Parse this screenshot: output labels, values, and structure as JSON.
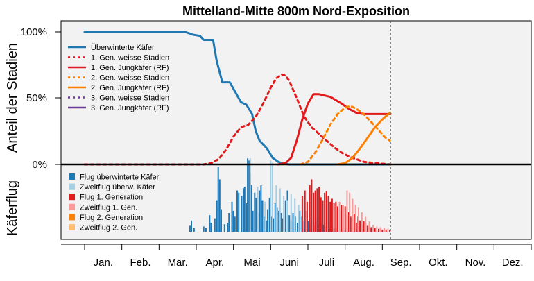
{
  "chart_data": [
    {
      "type": "line",
      "title": "Mittelland-Mitte 800m Nord-Exposition",
      "ylabel": "Anteil der Stadien",
      "y_ticks": [
        "100%",
        "50%",
        "0%"
      ],
      "ylim": [
        0,
        1.05
      ],
      "x_unit": "month (1.0 = 1 Jan, 13.0 = 31 Dec)",
      "xlim": [
        1.0,
        13.0
      ],
      "grid": false,
      "legend_position": "top-left",
      "current_date_marker": 9.22,
      "series": [
        {
          "name": "Überwinterte Käfer",
          "color": "#1f78b4",
          "style": "solid",
          "points": [
            [
              1.0,
              1.0
            ],
            [
              3.7,
              1.0
            ],
            [
              3.9,
              0.98
            ],
            [
              4.1,
              0.97
            ],
            [
              4.2,
              0.94
            ],
            [
              4.45,
              0.94
            ],
            [
              4.55,
              0.78
            ],
            [
              4.7,
              0.62
            ],
            [
              4.9,
              0.62
            ],
            [
              5.0,
              0.57
            ],
            [
              5.2,
              0.47
            ],
            [
              5.35,
              0.45
            ],
            [
              5.5,
              0.38
            ],
            [
              5.6,
              0.25
            ],
            [
              5.7,
              0.18
            ],
            [
              5.9,
              0.12
            ],
            [
              6.05,
              0.05
            ],
            [
              6.2,
              0.02
            ],
            [
              6.35,
              0.005
            ],
            [
              6.5,
              0.0
            ],
            [
              9.22,
              0.0
            ]
          ]
        },
        {
          "name": "1. Gen. weisse Stadien",
          "color": "#e31a1c",
          "style": "dotted",
          "points": [
            [
              1.0,
              0.0
            ],
            [
              4.2,
              0.0
            ],
            [
              4.4,
              0.01
            ],
            [
              4.6,
              0.04
            ],
            [
              4.8,
              0.11
            ],
            [
              5.0,
              0.21
            ],
            [
              5.2,
              0.28
            ],
            [
              5.4,
              0.3
            ],
            [
              5.6,
              0.36
            ],
            [
              5.8,
              0.46
            ],
            [
              6.0,
              0.58
            ],
            [
              6.15,
              0.65
            ],
            [
              6.3,
              0.68
            ],
            [
              6.4,
              0.67
            ],
            [
              6.5,
              0.63
            ],
            [
              6.7,
              0.5
            ],
            [
              6.9,
              0.36
            ],
            [
              7.1,
              0.28
            ],
            [
              7.3,
              0.23
            ],
            [
              7.5,
              0.18
            ],
            [
              7.7,
              0.13
            ],
            [
              7.9,
              0.09
            ],
            [
              8.1,
              0.06
            ],
            [
              8.3,
              0.04
            ],
            [
              8.5,
              0.02
            ],
            [
              8.8,
              0.01
            ],
            [
              9.22,
              0.0
            ]
          ]
        },
        {
          "name": "1. Gen. Jungkäfer (RF)",
          "color": "#e31a1c",
          "style": "solid",
          "points": [
            [
              6.2,
              0.0
            ],
            [
              6.4,
              0.01
            ],
            [
              6.55,
              0.05
            ],
            [
              6.7,
              0.18
            ],
            [
              6.85,
              0.34
            ],
            [
              7.0,
              0.46
            ],
            [
              7.15,
              0.53
            ],
            [
              7.3,
              0.53
            ],
            [
              7.6,
              0.51
            ],
            [
              7.9,
              0.46
            ],
            [
              8.1,
              0.42
            ],
            [
              8.3,
              0.39
            ],
            [
              8.5,
              0.38
            ],
            [
              9.22,
              0.38
            ]
          ]
        },
        {
          "name": "2. Gen. weisse Stadien",
          "color": "#ff7f00",
          "style": "dotted",
          "points": [
            [
              6.8,
              0.0
            ],
            [
              7.0,
              0.02
            ],
            [
              7.2,
              0.09
            ],
            [
              7.4,
              0.19
            ],
            [
              7.6,
              0.3
            ],
            [
              7.8,
              0.38
            ],
            [
              8.0,
              0.43
            ],
            [
              8.15,
              0.44
            ],
            [
              8.3,
              0.42
            ],
            [
              8.5,
              0.38
            ],
            [
              8.7,
              0.32
            ],
            [
              8.9,
              0.26
            ],
            [
              9.05,
              0.21
            ],
            [
              9.2,
              0.18
            ]
          ]
        },
        {
          "name": "2. Gen. Jungkäfer (RF)",
          "color": "#ff7f00",
          "style": "solid",
          "points": [
            [
              7.8,
              0.0
            ],
            [
              8.0,
              0.01
            ],
            [
              8.2,
              0.05
            ],
            [
              8.4,
              0.12
            ],
            [
              8.6,
              0.2
            ],
            [
              8.8,
              0.28
            ],
            [
              9.0,
              0.34
            ],
            [
              9.2,
              0.39
            ]
          ]
        },
        {
          "name": "3. Gen. weisse Stadien",
          "color": "#6a3d9a",
          "style": "dotted",
          "points": []
        },
        {
          "name": "3. Gen. Jungkäfer (RF)",
          "color": "#6a3d9a",
          "style": "solid",
          "points": []
        }
      ]
    },
    {
      "type": "bar",
      "ylabel": "Käferflug",
      "x_unit": "month (1.0 = 1 Jan)",
      "legend_position": "top-left",
      "x_tick_labels": [
        "Jan.",
        "Feb.",
        "Mär.",
        "Apr.",
        "Mai",
        "Juni",
        "Juli",
        "Aug.",
        "Sep.",
        "Okt.",
        "Nov.",
        "Dez."
      ],
      "series": [
        {
          "name": "Flug überwinterte Käfer",
          "color": "#1f78b4",
          "values": [
            [
              3.83,
              0.08
            ],
            [
              3.87,
              0.15
            ],
            [
              3.94,
              0.05
            ],
            [
              4.2,
              0.07
            ],
            [
              4.26,
              0.05
            ],
            [
              4.36,
              0.22
            ],
            [
              4.4,
              0.12
            ],
            [
              4.5,
              0.18
            ],
            [
              4.55,
              0.42
            ],
            [
              4.59,
              0.87
            ],
            [
              4.63,
              0.7
            ],
            [
              4.67,
              0.3
            ],
            [
              4.76,
              0.1
            ],
            [
              4.84,
              0.12
            ],
            [
              4.88,
              0.25
            ],
            [
              4.96,
              0.4
            ],
            [
              5.0,
              0.28
            ],
            [
              5.04,
              0.2
            ],
            [
              5.1,
              0.55
            ],
            [
              5.14,
              0.52
            ],
            [
              5.22,
              0.48
            ],
            [
              5.27,
              0.58
            ],
            [
              5.3,
              0.6
            ],
            [
              5.35,
              0.38
            ],
            [
              5.38,
              0.98
            ],
            [
              5.42,
              0.95
            ],
            [
              5.45,
              0.78
            ],
            [
              5.48,
              0.62
            ],
            [
              5.52,
              0.28
            ],
            [
              5.57,
              0.52
            ],
            [
              5.61,
              0.45
            ],
            [
              5.65,
              0.25
            ],
            [
              5.7,
              0.55
            ],
            [
              5.74,
              0.62
            ],
            [
              5.78,
              0.42
            ],
            [
              5.83,
              0.2
            ],
            [
              5.88,
              0.15
            ],
            [
              5.92,
              0.3
            ],
            [
              5.97,
              0.45
            ],
            [
              6.02,
              0.2
            ],
            [
              6.07,
              0.18
            ],
            [
              6.12,
              0.38
            ],
            [
              6.17,
              0.32
            ],
            [
              6.22,
              0.28
            ],
            [
              6.28,
              0.25
            ],
            [
              6.33,
              0.18
            ],
            [
              6.4,
              0.42
            ],
            [
              6.45,
              0.55
            ],
            [
              6.5,
              0.22
            ],
            [
              6.55,
              0.15
            ],
            [
              6.6,
              0.25
            ],
            [
              6.66,
              0.2
            ],
            [
              6.72,
              0.12
            ],
            [
              6.78,
              0.28
            ],
            [
              6.84,
              0.2
            ],
            [
              6.9,
              0.15
            ],
            [
              6.95,
              0.22
            ],
            [
              7.0,
              0.14
            ],
            [
              7.05,
              0.1
            ],
            [
              7.1,
              0.16
            ],
            [
              7.15,
              0.12
            ],
            [
              7.2,
              0.08
            ],
            [
              7.25,
              0.14
            ],
            [
              7.3,
              0.1
            ],
            [
              7.35,
              0.12
            ],
            [
              7.42,
              0.09
            ],
            [
              7.5,
              0.07
            ],
            [
              7.6,
              0.06
            ],
            [
              7.7,
              0.05
            ],
            [
              7.8,
              0.04
            ],
            [
              7.9,
              0.04
            ],
            [
              8.0,
              0.03
            ],
            [
              8.1,
              0.02
            ],
            [
              8.2,
              0.02
            ],
            [
              8.3,
              0.02
            ]
          ]
        },
        {
          "name": "Zweitflug überw. Käfer",
          "color": "#a6cee3",
          "values": [
            [
              5.45,
              0.98
            ],
            [
              5.65,
              0.6
            ],
            [
              5.85,
              0.4
            ],
            [
              6.0,
              0.95
            ],
            [
              6.05,
              0.92
            ],
            [
              6.15,
              0.62
            ],
            [
              6.25,
              0.58
            ],
            [
              6.35,
              0.48
            ],
            [
              6.45,
              0.42
            ],
            [
              6.55,
              0.5
            ],
            [
              6.65,
              0.44
            ],
            [
              6.75,
              0.36
            ],
            [
              6.85,
              0.36
            ],
            [
              6.95,
              0.28
            ],
            [
              7.05,
              0.24
            ],
            [
              7.15,
              0.2
            ],
            [
              7.25,
              0.18
            ],
            [
              7.35,
              0.14
            ],
            [
              7.45,
              0.12
            ],
            [
              7.55,
              0.09
            ],
            [
              7.65,
              0.07
            ],
            [
              7.75,
              0.06
            ],
            [
              7.9,
              0.05
            ],
            [
              8.05,
              0.04
            ],
            [
              8.2,
              0.03
            ]
          ]
        },
        {
          "name": "Flug 1. Generation",
          "color": "#e31a1c",
          "values": [
            [
              6.85,
              0.48
            ],
            [
              6.92,
              0.55
            ],
            [
              6.98,
              0.4
            ],
            [
              7.05,
              0.62
            ],
            [
              7.1,
              0.7
            ],
            [
              7.15,
              0.52
            ],
            [
              7.2,
              0.55
            ],
            [
              7.25,
              0.58
            ],
            [
              7.3,
              0.6
            ],
            [
              7.35,
              0.46
            ],
            [
              7.4,
              0.42
            ],
            [
              7.45,
              0.52
            ],
            [
              7.5,
              0.54
            ],
            [
              7.55,
              0.48
            ],
            [
              7.6,
              0.4
            ],
            [
              7.65,
              0.44
            ],
            [
              7.7,
              0.38
            ],
            [
              7.75,
              0.4
            ],
            [
              7.8,
              0.34
            ],
            [
              7.85,
              0.3
            ],
            [
              7.9,
              0.36
            ],
            [
              7.95,
              0.28
            ],
            [
              8.0,
              0.34
            ],
            [
              8.05,
              0.22
            ],
            [
              8.1,
              0.26
            ],
            [
              8.15,
              0.2
            ],
            [
              8.2,
              0.18
            ],
            [
              8.25,
              0.24
            ],
            [
              8.3,
              0.12
            ],
            [
              8.35,
              0.2
            ],
            [
              8.4,
              0.15
            ],
            [
              8.45,
              0.1
            ],
            [
              8.5,
              0.14
            ],
            [
              8.55,
              0.12
            ],
            [
              8.6,
              0.08
            ],
            [
              8.65,
              0.1
            ],
            [
              8.7,
              0.06
            ],
            [
              8.8,
              0.05
            ],
            [
              8.9,
              0.04
            ],
            [
              9.0,
              0.03
            ],
            [
              9.1,
              0.03
            ],
            [
              9.2,
              0.02
            ]
          ]
        },
        {
          "name": "Zweitflug 1. Gen.",
          "color": "#fb9a99",
          "values": [
            [
              7.85,
              0.4
            ],
            [
              7.95,
              0.36
            ],
            [
              8.05,
              0.55
            ],
            [
              8.12,
              0.52
            ],
            [
              8.2,
              0.44
            ],
            [
              8.28,
              0.36
            ],
            [
              8.36,
              0.32
            ],
            [
              8.45,
              0.26
            ],
            [
              8.55,
              0.2
            ],
            [
              8.65,
              0.14
            ],
            [
              8.75,
              0.09
            ],
            [
              8.85,
              0.07
            ],
            [
              8.95,
              0.06
            ],
            [
              9.05,
              0.05
            ],
            [
              9.15,
              0.04
            ]
          ]
        },
        {
          "name": "Flug 2. Generation",
          "color": "#ff7f00",
          "values": []
        },
        {
          "name": "Zweitflug 2. Gen.",
          "color": "#fdbf6f",
          "values": []
        }
      ]
    }
  ]
}
